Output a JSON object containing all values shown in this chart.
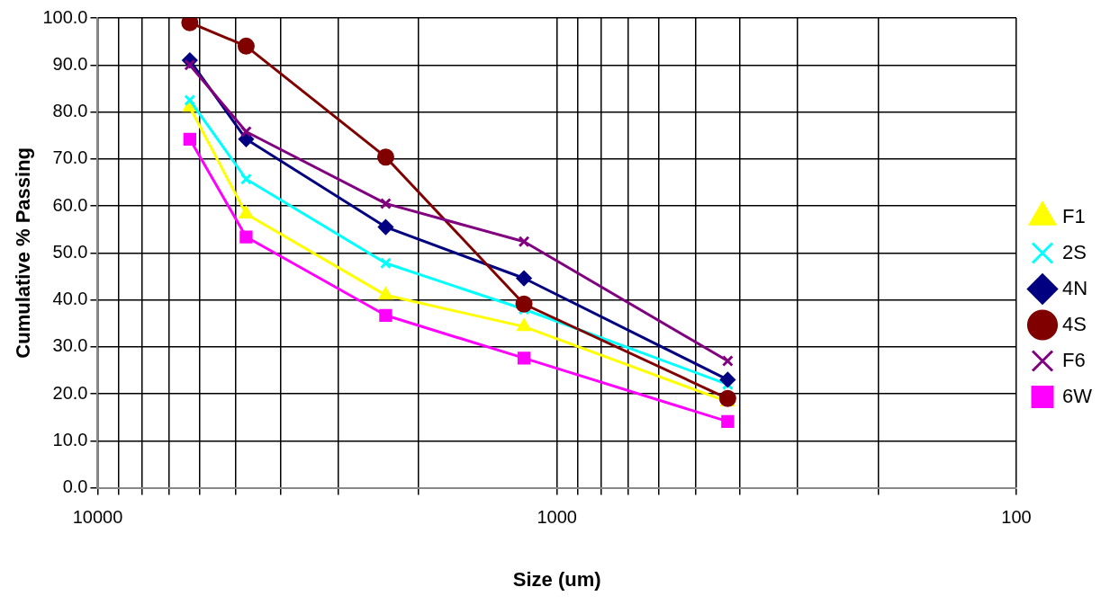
{
  "chart_data": {
    "type": "line",
    "xlabel": "Size (um)",
    "ylabel": "Cumulative % Passing",
    "log": "x",
    "grid": true,
    "legend": "right",
    "x": [
      6300,
      4750,
      2360,
      1180,
      425
    ],
    "xlim": [
      10000,
      100
    ],
    "xticks": [
      {
        "value": 10000,
        "label": "10000"
      },
      {
        "value": 9000,
        "label": null
      },
      {
        "value": 8000,
        "label": null
      },
      {
        "value": 7000,
        "label": null
      },
      {
        "value": 6000,
        "label": null
      },
      {
        "value": 5000,
        "label": null
      },
      {
        "value": 4000,
        "label": null
      },
      {
        "value": 3000,
        "label": null
      },
      {
        "value": 2000,
        "label": null
      },
      {
        "value": 1000,
        "label": "1000"
      },
      {
        "value": 900,
        "label": null
      },
      {
        "value": 800,
        "label": null
      },
      {
        "value": 700,
        "label": null
      },
      {
        "value": 600,
        "label": null
      },
      {
        "value": 500,
        "label": null
      },
      {
        "value": 400,
        "label": null
      },
      {
        "value": 300,
        "label": null
      },
      {
        "value": 200,
        "label": null
      },
      {
        "value": 100,
        "label": "100"
      }
    ],
    "ylim": [
      0,
      100
    ],
    "yticks": [
      {
        "value": 0,
        "label": "0.0"
      },
      {
        "value": 10,
        "label": "10.0"
      },
      {
        "value": 20,
        "label": "20.0"
      },
      {
        "value": 30,
        "label": "30.0"
      },
      {
        "value": 40,
        "label": "40.0"
      },
      {
        "value": 50,
        "label": "50.0"
      },
      {
        "value": 60,
        "label": "60.0"
      },
      {
        "value": 70,
        "label": "70.0"
      },
      {
        "value": 80,
        "label": "80.0"
      },
      {
        "value": 90,
        "label": "90.0"
      },
      {
        "value": 100,
        "label": "100.0"
      }
    ],
    "series": [
      {
        "name": "F1",
        "color": "#ffff00",
        "marker": "triangle",
        "values": [
          81,
          58.3,
          41,
          34.3,
          18.3
        ]
      },
      {
        "name": "2S",
        "color": "#00ffff",
        "marker": "cross",
        "values": [
          82.5,
          65.7,
          47.8,
          38,
          22
        ]
      },
      {
        "name": "4N",
        "color": "#000080",
        "marker": "diamond",
        "values": [
          91,
          74.2,
          55.5,
          44.6,
          23
        ]
      },
      {
        "name": "4S",
        "color": "#800000",
        "marker": "circle",
        "values": [
          99,
          94,
          70.4,
          39.1,
          19
        ]
      },
      {
        "name": "F6",
        "color": "#800080",
        "marker": "cross",
        "values": [
          90,
          75.8,
          60.5,
          52.4,
          27
        ]
      },
      {
        "name": "6W",
        "color": "#ff00ff",
        "marker": "square",
        "values": [
          74.2,
          53.4,
          36.7,
          27.6,
          14.1
        ]
      }
    ]
  }
}
